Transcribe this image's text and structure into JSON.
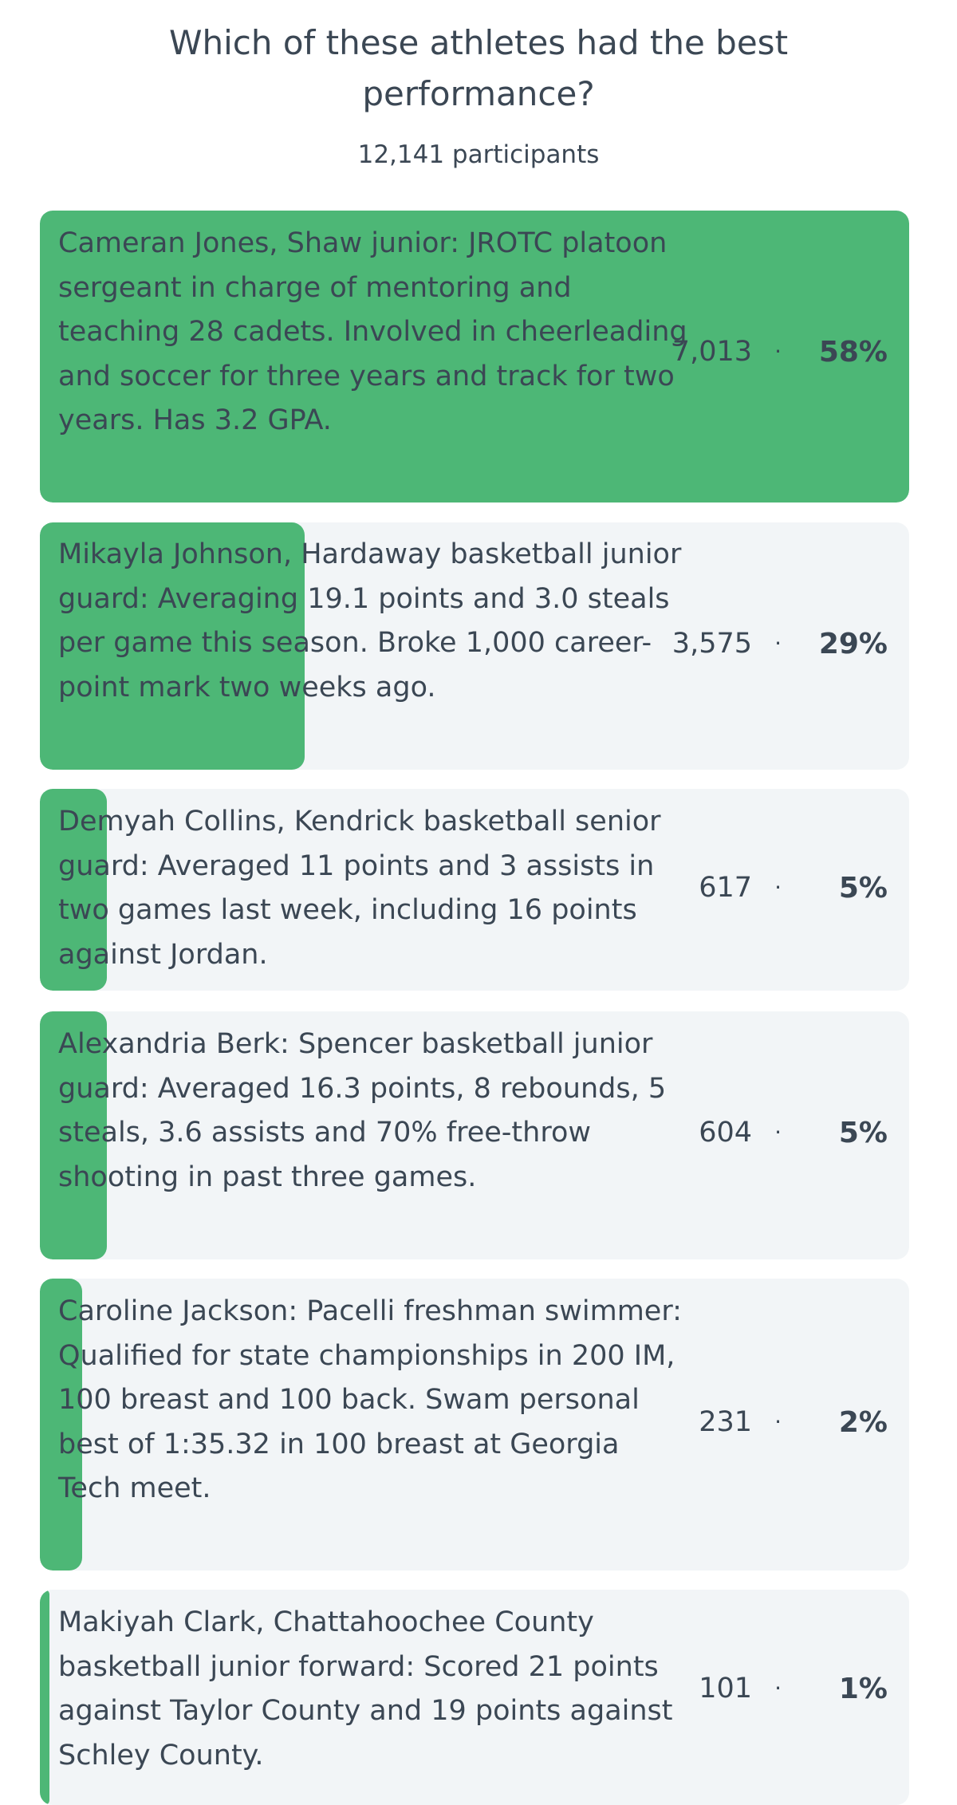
{
  "poll": {
    "question": "Which of these athletes had the best performance?",
    "participants": "12,141 participants",
    "separator": "·",
    "accent_color": "#4db776",
    "option_background": "#f2f5f7",
    "options": [
      {
        "text": "Cameran Jones, Shaw junior: JROTC platoon sergeant in charge of mentoring and teaching 28 cadets. Involved in cheerleading and soccer for three years and track for two years. Has 3.2 GPA.",
        "votes": "7,013",
        "percent": "58%",
        "share": 0.58
      },
      {
        "text": "Mikayla Johnson, Hardaway basketball junior guard: Averaging 19.1 points and 3.0 steals per game this season. Broke 1,000 career-point mark two weeks ago.",
        "votes": "3,575",
        "percent": "29%",
        "share": 0.29
      },
      {
        "text": "Demyah Collins, Kendrick basketball senior guard: Averaged 11 points and 3 assists in two games last week, including 16 points against Jordan.",
        "votes": "617",
        "percent": "5%",
        "share": 0.05
      },
      {
        "text": "Alexandria Berk: Spencer basketball junior guard: Averaged 16.3 points, 8 rebounds, 5 steals, 3.6 assists and 70% free-throw shooting in past three games.",
        "votes": "604",
        "percent": "5%",
        "share": 0.05
      },
      {
        "text": "Caroline Jackson: Pacelli freshman swimmer: Qualified for state championships in 200 IM, 100 breast and 100 back. Swam personal best of 1:35.32 in 100 breast at Georgia Tech meet.",
        "votes": "231",
        "percent": "2%",
        "share": 0.02
      },
      {
        "text": "Makiyah Clark, Chattahoochee County basketball junior forward: Scored 21 points against Taylor County and 19 points against Schley County.",
        "votes": "101",
        "percent": "1%",
        "share": 0.01
      }
    ]
  }
}
